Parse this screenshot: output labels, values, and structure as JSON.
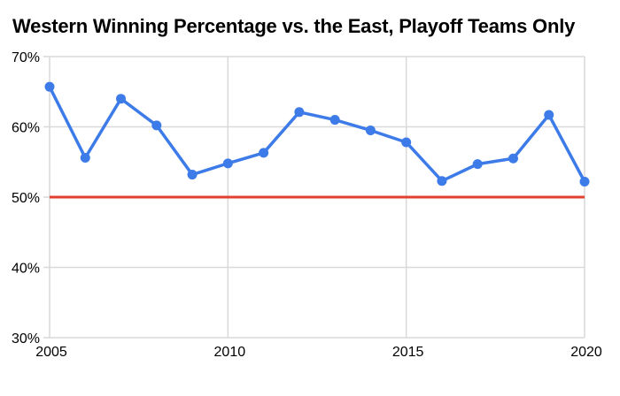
{
  "chart_data": {
    "type": "line",
    "title": "Western Winning Percentage vs. the East, Playoff Teams Only",
    "xlabel": "",
    "ylabel": "",
    "x": [
      2005,
      2006,
      2007,
      2008,
      2009,
      2010,
      2011,
      2012,
      2013,
      2014,
      2015,
      2016,
      2017,
      2018,
      2019,
      2020
    ],
    "series": [
      {
        "name": "Western winning percentage vs. the East",
        "values": [
          65.7,
          55.6,
          64.0,
          60.2,
          53.2,
          54.8,
          56.3,
          62.1,
          61.0,
          59.5,
          57.8,
          52.3,
          54.7,
          55.5,
          61.7,
          52.2
        ],
        "color": "#3D7BE8",
        "marker": "circle"
      }
    ],
    "reference_line": {
      "value": 50,
      "color": "#E2402F"
    },
    "xlim": [
      2005,
      2020
    ],
    "ylim": [
      30,
      70
    ],
    "xticks": [
      2005,
      2010,
      2015,
      2020
    ],
    "yticks": [
      30,
      40,
      50,
      60,
      70
    ],
    "ytick_format": "percent",
    "ytick_labels": [
      "30%",
      "40%",
      "50%",
      "60%",
      "70%"
    ],
    "grid": true,
    "legend_position": "none"
  },
  "colors": {
    "background": "#FFFFFF",
    "gridline": "#D9D9D9",
    "axis_text": "#000000",
    "series_blue": "#3D7BE8",
    "reference_red": "#E2402F"
  }
}
